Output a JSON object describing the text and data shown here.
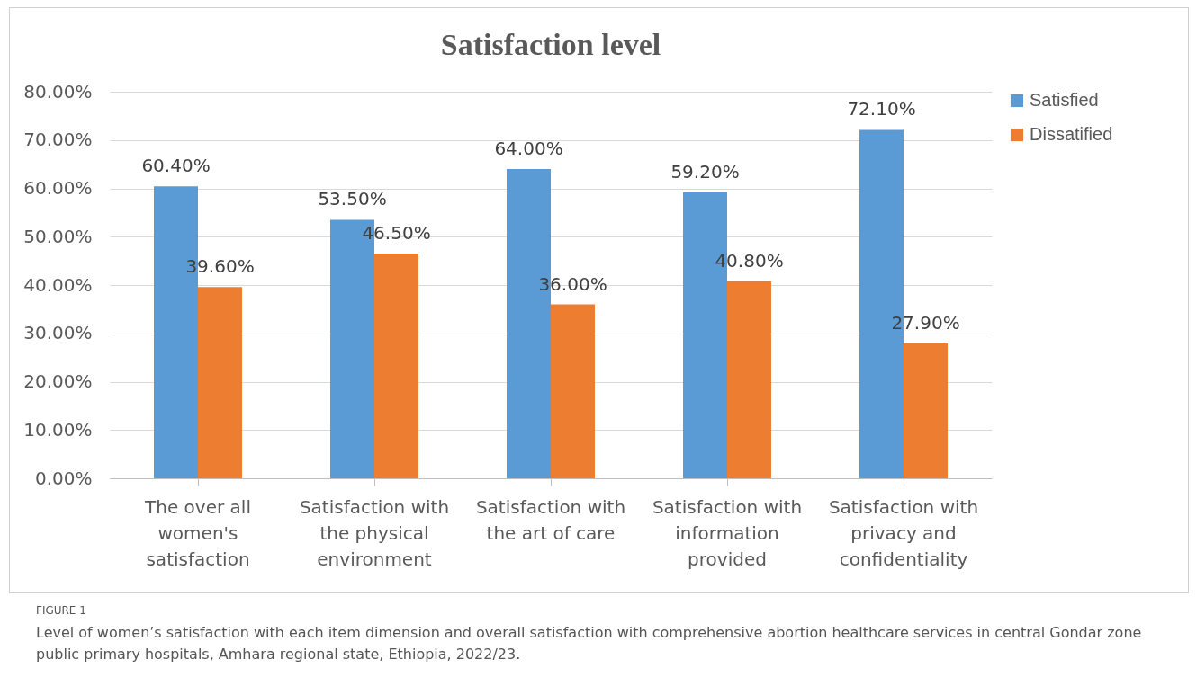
{
  "chart_data": {
    "type": "bar",
    "title": "Satisfaction level",
    "categories": [
      "The over all women's satisfaction",
      "Satisfaction with the physical environment",
      "Satisfaction with the art of care",
      "Satisfaction with information provided",
      "Satisfaction with privacy and confidentiality"
    ],
    "series": [
      {
        "name": "Satisfied",
        "color": "#5b9bd5",
        "values": [
          60.4,
          53.5,
          64.0,
          59.2,
          72.1
        ],
        "value_labels": [
          "60.40%",
          "53.50%",
          "64.00%",
          "59.20%",
          "72.10%"
        ]
      },
      {
        "name": "Dissatified",
        "color": "#ed7d31",
        "values": [
          39.6,
          46.5,
          36.0,
          40.8,
          27.9
        ],
        "value_labels": [
          "39.60%",
          "46.50%",
          "36.00%",
          "40.80%",
          "27.90%"
        ]
      }
    ],
    "ylim": [
      0,
      80
    ],
    "yticks": [
      {
        "value": 0,
        "label": "0.00%"
      },
      {
        "value": 10,
        "label": "10.00%"
      },
      {
        "value": 20,
        "label": "20.00%"
      },
      {
        "value": 30,
        "label": "30.00%"
      },
      {
        "value": 40,
        "label": "40.00%"
      },
      {
        "value": 50,
        "label": "50.00%"
      },
      {
        "value": 60,
        "label": "60.00%"
      },
      {
        "value": 70,
        "label": "70.00%"
      },
      {
        "value": 80,
        "label": "80.00%"
      }
    ],
    "grid": "y",
    "legend": "right",
    "annotations": [
      "FIGURE 1",
      "Level of women’s satisfaction with each item dimension and overall satisfaction with comprehensive abortion healthcare services in central Gondar zone public primary hospitals, Amhara regional state, Ethiopia, 2022/23."
    ]
  }
}
